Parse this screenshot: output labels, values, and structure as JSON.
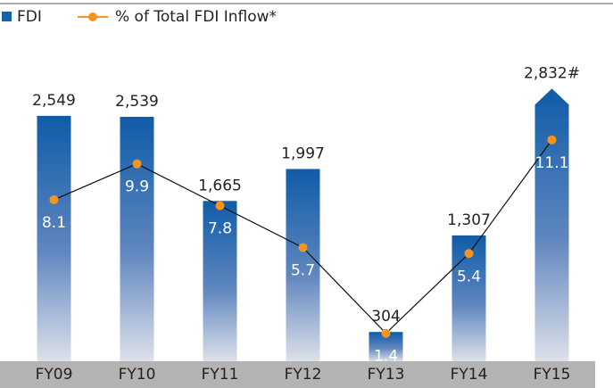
{
  "chart_data": {
    "type": "bar",
    "categories": [
      "FY09",
      "FY10",
      "FY11",
      "FY12",
      "FY13",
      "FY14",
      "FY15"
    ],
    "series": [
      {
        "name": "FDI",
        "color": "#1463ad",
        "values": [
          2549,
          2539,
          1665,
          1997,
          304,
          1307,
          2832
        ],
        "value_labels": [
          "2,549",
          "2,539",
          "1,665",
          "1,997",
          "304",
          "1,307",
          "2,832#"
        ]
      },
      {
        "name": "% of Total FDI Inflow*",
        "color": "#f7941d",
        "axis": "y2",
        "values": [
          8.1,
          9.9,
          7.8,
          5.7,
          1.4,
          5.4,
          11.1
        ]
      }
    ],
    "ylim": [
      0,
      2900
    ],
    "y2lim": [
      0,
      14
    ]
  }
}
